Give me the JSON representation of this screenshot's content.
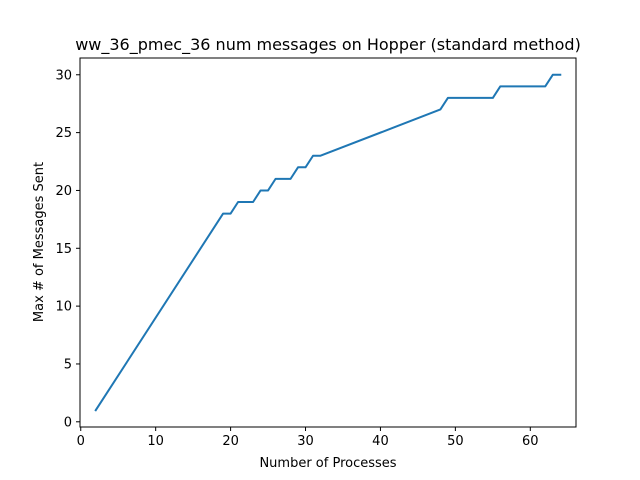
{
  "chart_data": {
    "type": "line",
    "title": "ww_36_pmec_36 num messages on Hopper (standard method)",
    "xlabel": "Number of Processes",
    "ylabel": "Max # of Messages Sent",
    "xlim": [
      -0.1,
      66.1
    ],
    "ylim": [
      -0.45,
      31.45
    ],
    "xticks": [
      0,
      10,
      20,
      30,
      40,
      50,
      60
    ],
    "yticks": [
      0,
      5,
      10,
      15,
      20,
      25,
      30
    ],
    "grid": false,
    "series": [
      {
        "color": "#1f77b4",
        "x": [
          2,
          19,
          20,
          21,
          22,
          23,
          24,
          25,
          26,
          27,
          28,
          29,
          30,
          31,
          32,
          48,
          49,
          50,
          51,
          52,
          53,
          54,
          55,
          56,
          57,
          58,
          59,
          60,
          61,
          62,
          63,
          64
        ],
        "y": [
          1,
          18,
          18,
          19,
          19,
          19,
          20,
          20,
          21,
          21,
          21,
          22,
          22,
          23,
          23,
          27,
          28,
          28,
          28,
          28,
          28,
          28,
          28,
          29,
          29,
          29,
          29,
          29,
          29,
          29,
          30,
          30
        ]
      }
    ]
  }
}
